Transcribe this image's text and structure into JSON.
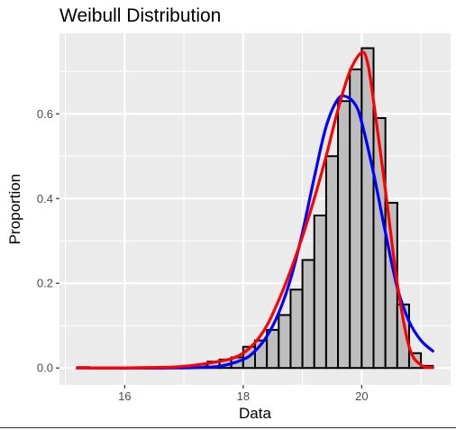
{
  "chart_data": {
    "type": "bar",
    "title": "Weibull Distribution",
    "xlabel": "Data",
    "ylabel": "Proportion",
    "xlim": [
      14.9,
      21.5
    ],
    "ylim": [
      -0.04,
      0.79
    ],
    "x_ticks": [
      16,
      18,
      20
    ],
    "x_tick_labels": [
      "16",
      "18",
      "20"
    ],
    "y_ticks": [
      0.0,
      0.2,
      0.4,
      0.6
    ],
    "y_tick_labels": [
      "0.0",
      "0.2",
      "0.4",
      "0.6"
    ],
    "grid": true,
    "bin_width": 0.2,
    "histogram": {
      "bin_left": [
        15.2,
        15.4,
        15.6,
        15.8,
        16.0,
        16.2,
        16.4,
        16.6,
        16.8,
        17.0,
        17.2,
        17.4,
        17.6,
        17.8,
        18.0,
        18.2,
        18.4,
        18.6,
        18.8,
        19.0,
        19.2,
        19.4,
        19.6,
        19.8,
        20.0,
        20.2,
        20.4,
        20.6,
        20.8,
        21.0
      ],
      "values": [
        0.002,
        0.0,
        0.0,
        0.0,
        0.0,
        0.0,
        0.0,
        0.002,
        0.002,
        0.005,
        0.008,
        0.015,
        0.02,
        0.025,
        0.05,
        0.065,
        0.09,
        0.125,
        0.185,
        0.255,
        0.36,
        0.5,
        0.63,
        0.705,
        0.755,
        0.59,
        0.39,
        0.15,
        0.035,
        0.005
      ]
    },
    "series": [
      {
        "color": "#0000ff",
        "x": [
          15.2,
          15.6,
          16.0,
          16.4,
          16.8,
          17.2,
          17.6,
          18.0,
          18.2,
          18.4,
          18.6,
          18.8,
          19.0,
          19.2,
          19.4,
          19.6,
          19.75,
          19.9,
          20.0,
          20.2,
          20.4,
          20.6,
          20.8,
          21.0,
          21.2
        ],
        "y": [
          0.0,
          0.0,
          0.0,
          0.0,
          0.0,
          0.001,
          0.004,
          0.02,
          0.04,
          0.075,
          0.13,
          0.21,
          0.32,
          0.45,
          0.57,
          0.635,
          0.64,
          0.62,
          0.58,
          0.46,
          0.32,
          0.19,
          0.11,
          0.065,
          0.04
        ]
      },
      {
        "color": "#ff0000",
        "x": [
          15.2,
          15.6,
          16.0,
          16.4,
          16.8,
          17.0,
          17.2,
          17.4,
          17.6,
          17.8,
          18.0,
          18.2,
          18.4,
          18.6,
          18.8,
          19.0,
          19.2,
          19.4,
          19.6,
          19.8,
          20.0,
          20.1,
          20.2,
          20.4,
          20.6,
          20.8,
          21.0,
          21.2
        ],
        "y": [
          0.0,
          0.0,
          0.0,
          0.001,
          0.002,
          0.004,
          0.007,
          0.011,
          0.016,
          0.022,
          0.035,
          0.06,
          0.1,
          0.16,
          0.23,
          0.31,
          0.4,
          0.5,
          0.61,
          0.7,
          0.745,
          0.72,
          0.63,
          0.42,
          0.2,
          0.05,
          0.007,
          0.001
        ]
      }
    ],
    "colors": {
      "panel": "#ebebeb",
      "grid": "#ffffff",
      "bar_fill": "#bebebe",
      "bar_stroke": "#000000"
    }
  }
}
